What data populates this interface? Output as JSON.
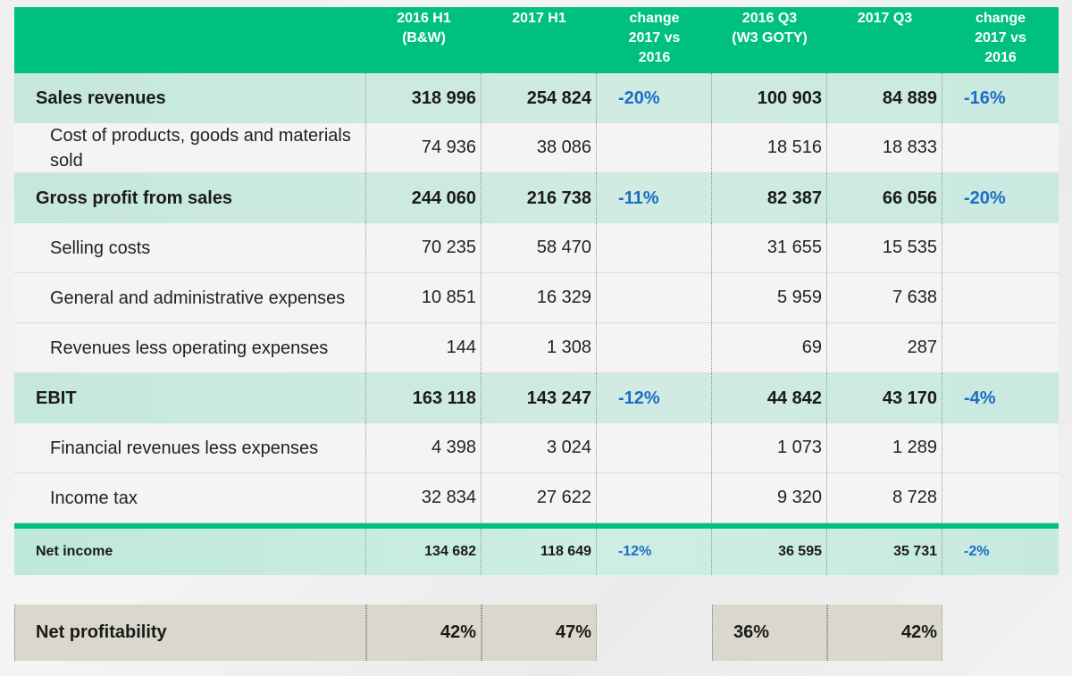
{
  "header": {
    "columns": [
      "",
      "2016 H1\n(B&W)",
      "2017 H1",
      "change\n2017 vs\n2016",
      "2016 Q3\n(W3 GOTY)",
      "2017 Q3",
      "change\n2017 vs\n2016"
    ]
  },
  "rows": [
    {
      "label": "Sales revenues",
      "h1_2016": "318 996",
      "h1_2017": "254 824",
      "h1_change": "-20%",
      "q3_2016": "100 903",
      "q3_2017": "84 889",
      "q3_change": "-16%"
    },
    {
      "label": "Cost of products, goods and materials sold",
      "h1_2016": "74 936",
      "h1_2017": "38 086",
      "h1_change": "",
      "q3_2016": "18 516",
      "q3_2017": "18 833",
      "q3_change": ""
    },
    {
      "label": "Gross profit from sales",
      "h1_2016": "244 060",
      "h1_2017": "216 738",
      "h1_change": "-11%",
      "q3_2016": "82 387",
      "q3_2017": "66 056",
      "q3_change": "-20%"
    },
    {
      "label": "Selling costs",
      "h1_2016": "70 235",
      "h1_2017": "58 470",
      "h1_change": "",
      "q3_2016": "31 655",
      "q3_2017": "15 535",
      "q3_change": ""
    },
    {
      "label": "General and administrative expenses",
      "h1_2016": "10 851",
      "h1_2017": "16 329",
      "h1_change": "",
      "q3_2016": "5 959",
      "q3_2017": "7 638",
      "q3_change": ""
    },
    {
      "label": "Revenues less operating expenses",
      "h1_2016": "144",
      "h1_2017": "1 308",
      "h1_change": "",
      "q3_2016": "69",
      "q3_2017": "287",
      "q3_change": ""
    },
    {
      "label": "EBIT",
      "h1_2016": "163 118",
      "h1_2017": "143 247",
      "h1_change": "-12%",
      "q3_2016": "44 842",
      "q3_2017": "43 170",
      "q3_change": "-4%"
    },
    {
      "label": "Financial revenues less expenses",
      "h1_2016": "4 398",
      "h1_2017": "3 024",
      "h1_change": "",
      "q3_2016": "1 073",
      "q3_2017": "1 289",
      "q3_change": ""
    },
    {
      "label": "Income tax",
      "h1_2016": "32 834",
      "h1_2017": "27 622",
      "h1_change": "",
      "q3_2016": "9 320",
      "q3_2017": "8 728",
      "q3_change": ""
    }
  ],
  "net_income": {
    "label": "Net income",
    "h1_2016": "134 682",
    "h1_2017": "118 649",
    "h1_change": "-12%",
    "q3_2016": "36 595",
    "q3_2017": "35 731",
    "q3_change": "-2%"
  },
  "net_profitability": {
    "label": "Net profitability",
    "h1_2016": "42%",
    "h1_2017": "47%",
    "q3_2016": "36%",
    "q3_2017": "42%"
  },
  "colors": {
    "header_green": "#00c081",
    "highlight_mint": "#cbe9e0",
    "change_blue": "#1c6ec4",
    "profit_beige": "#dad8cc"
  }
}
